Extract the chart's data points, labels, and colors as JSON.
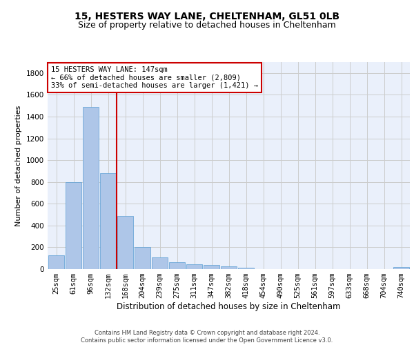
{
  "title1": "15, HESTERS WAY LANE, CHELTENHAM, GL51 0LB",
  "title2": "Size of property relative to detached houses in Cheltenham",
  "xlabel": "Distribution of detached houses by size in Cheltenham",
  "ylabel": "Number of detached properties",
  "categories": [
    "25sqm",
    "61sqm",
    "96sqm",
    "132sqm",
    "168sqm",
    "204sqm",
    "239sqm",
    "275sqm",
    "311sqm",
    "347sqm",
    "382sqm",
    "418sqm",
    "454sqm",
    "490sqm",
    "525sqm",
    "561sqm",
    "597sqm",
    "633sqm",
    "668sqm",
    "704sqm",
    "740sqm"
  ],
  "values": [
    125,
    800,
    1490,
    880,
    490,
    200,
    105,
    65,
    45,
    35,
    28,
    10,
    0,
    0,
    0,
    0,
    0,
    0,
    0,
    0,
    20
  ],
  "bar_color": "#aec6e8",
  "bar_edge_color": "#5a9fd4",
  "vline_color": "#cc0000",
  "vline_pos": 3.5,
  "annotation_text": "15 HESTERS WAY LANE: 147sqm\n← 66% of detached houses are smaller (2,809)\n33% of semi-detached houses are larger (1,421) →",
  "annotation_box_color": "#ffffff",
  "annotation_box_edge": "#cc0000",
  "ylim": [
    0,
    1900
  ],
  "yticks": [
    0,
    200,
    400,
    600,
    800,
    1000,
    1200,
    1400,
    1600,
    1800
  ],
  "grid_color": "#cccccc",
  "bg_color": "#eaf0fb",
  "footer": "Contains HM Land Registry data © Crown copyright and database right 2024.\nContains public sector information licensed under the Open Government Licence v3.0.",
  "title1_fontsize": 10,
  "title2_fontsize": 9,
  "xlabel_fontsize": 8.5,
  "ylabel_fontsize": 8,
  "tick_fontsize": 7.5,
  "ann_fontsize": 7.5,
  "footer_fontsize": 6
}
